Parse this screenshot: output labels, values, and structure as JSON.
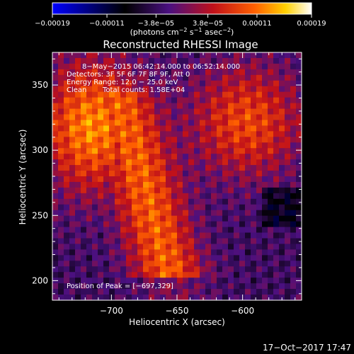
{
  "chart_data": {
    "type": "heatmap",
    "title": "Reconstructed RHESSI Image",
    "xlabel": "Heliocentric X (arcsec)",
    "ylabel": "Heliocentric Y (arcsec)",
    "xlim": [
      -745,
      -555
    ],
    "ylim": [
      185,
      375
    ],
    "x_ticks": [
      -700,
      -650,
      -600
    ],
    "y_ticks": [
      200,
      250,
      300,
      350
    ],
    "x_tick_labels": [
      "−700",
      "−650",
      "−600"
    ],
    "y_tick_labels": [
      "200",
      "250",
      "300",
      "350"
    ],
    "colorbar": {
      "range": [
        -0.00019,
        0.00019
      ],
      "ticks": [
        -0.00019,
        -0.00011,
        -3.8e-05,
        3.8e-05,
        0.00011,
        0.00019
      ],
      "tick_labels": [
        "−0.00019",
        "−0.00011",
        "−3.8e−05",
        "3.8e−05",
        "0.00011",
        "0.00019"
      ],
      "unit_prefix": "(photons cm",
      "unit_exp1": "−2",
      "unit_mid": " s",
      "unit_exp2": "−1",
      "unit_mid2": " asec",
      "unit_exp3": "−2",
      "unit_suffix": ")",
      "colors": [
        "#0000ff",
        "#000000",
        "#4a1080",
        "#c0101a",
        "#ff6000",
        "#ffd000",
        "#ffffff"
      ]
    },
    "annotations": {
      "time_range": "8−May−2015 06:42:14.000 to 06:52:14.000",
      "detectors": "Detectors: 3F 5F 6F 7F 8F 9F, Att 0",
      "energy_range": "Energy Range: 12.0 − 25.0 keV",
      "method": "Clean",
      "total_counts": "Total counts: 1.58E+04",
      "peak_position": "Position of Peak = [−697,329]"
    },
    "peak": [
      -697,
      329
    ]
  },
  "footer": {
    "timestamp": "17−Oct−2017 17:47"
  }
}
